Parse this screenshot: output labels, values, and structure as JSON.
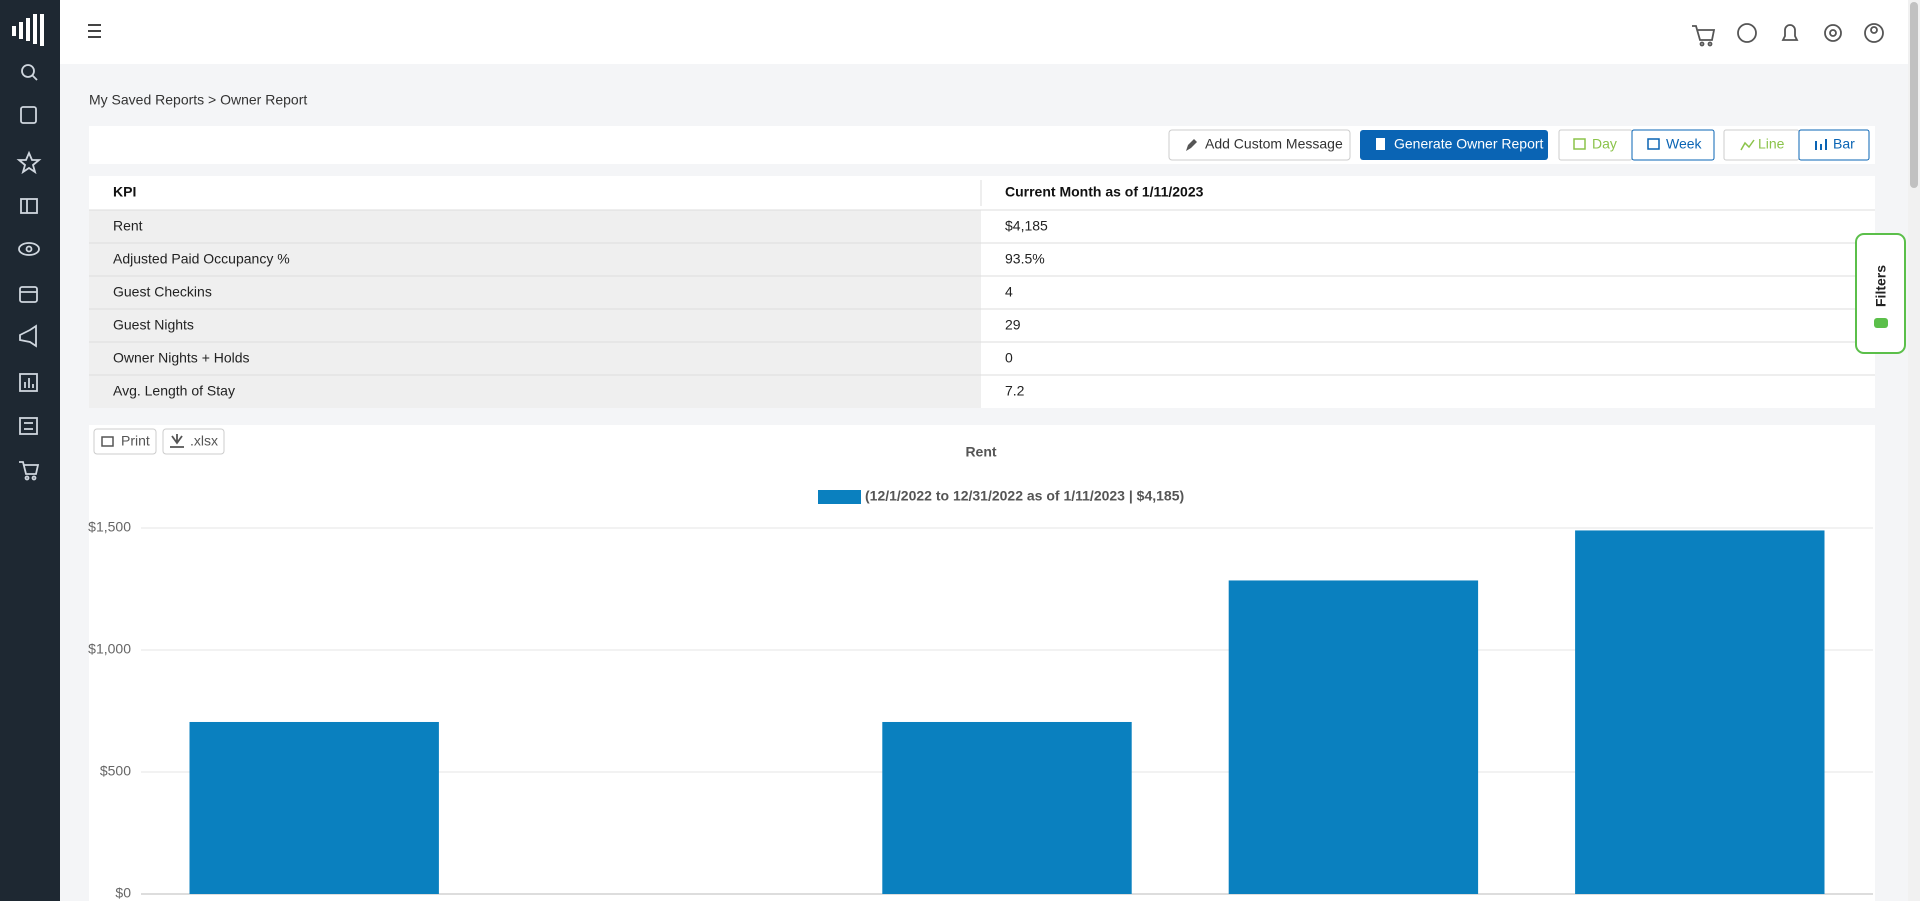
{
  "breadcrumb": "My Saved Reports > Owner Report",
  "toolbar": {
    "add_message": "Add Custom Message",
    "generate": "Generate Owner Report",
    "day": "Day",
    "week": "Week",
    "line": "Line",
    "bar": "Bar"
  },
  "filters": "Filters",
  "table": {
    "header": [
      "KPI",
      "Current Month as of 1/11/2023"
    ],
    "rows": [
      [
        "Rent",
        "$4,185"
      ],
      [
        "Adjusted Paid Occupancy %",
        "93.5%"
      ],
      [
        "Guest Checkins",
        "4"
      ],
      [
        "Guest Nights",
        "29"
      ],
      [
        "Owner Nights + Holds",
        "0"
      ],
      [
        "Avg. Length of Stay",
        "7.2"
      ]
    ]
  },
  "chart_buttons": {
    "print": "Print",
    "xlsx": ".xlsx"
  },
  "chart_data": {
    "type": "bar",
    "title": "Rent",
    "categories": [
      null,
      null,
      null,
      null,
      null
    ],
    "series": [
      {
        "name": "(12/1/2022 to 12/31/2022 as of 1/11/2023 | $4,185)",
        "color": "#0a80bf",
        "values": [
          705,
          0,
          705,
          1285,
          1490
        ]
      }
    ],
    "ylim": [
      0,
      1500
    ],
    "yticks": [
      {
        "value": 0,
        "label": "$0"
      },
      {
        "value": 500,
        "label": "$500"
      },
      {
        "value": 1000,
        "label": "$1,000"
      },
      {
        "value": 1500,
        "label": "$1,500"
      }
    ],
    "grid": true
  }
}
